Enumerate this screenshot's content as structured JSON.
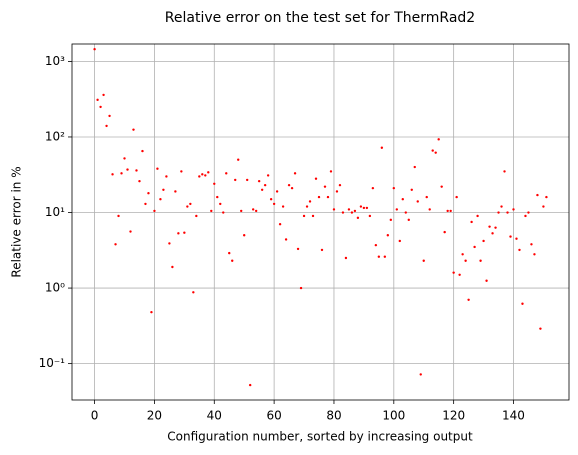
{
  "chart_data": {
    "type": "scatter",
    "title": "Relative error on the test set for ThermRad2",
    "x_label": "Configuration number, sorted by increasing output",
    "y_label": "Relative error in %",
    "color": "#ff0000",
    "log_y": true,
    "grid": true,
    "xlim": [
      -7.55,
      158.55
    ],
    "ylim": [
      0.033,
      1700
    ],
    "xticks": [
      0,
      20,
      40,
      60,
      80,
      100,
      120,
      140
    ],
    "yticks": [
      {
        "value": 0.1,
        "label": "10⁻¹"
      },
      {
        "value": 1,
        "label": "10⁰"
      },
      {
        "value": 10,
        "label": "10¹"
      },
      {
        "value": 100,
        "label": "10²"
      },
      {
        "value": 1000,
        "label": "10³"
      }
    ],
    "x": [
      0,
      1,
      2,
      3,
      4,
      5,
      6,
      7,
      8,
      9,
      10,
      11,
      12,
      13,
      14,
      15,
      16,
      17,
      18,
      19,
      20,
      21,
      22,
      23,
      24,
      25,
      26,
      27,
      28,
      29,
      30,
      31,
      32,
      33,
      34,
      35,
      36,
      37,
      38,
      39,
      40,
      41,
      42,
      43,
      44,
      45,
      46,
      47,
      48,
      49,
      50,
      51,
      52,
      53,
      54,
      55,
      56,
      57,
      58,
      59,
      60,
      61,
      62,
      63,
      64,
      65,
      66,
      67,
      68,
      69,
      70,
      71,
      72,
      73,
      74,
      75,
      76,
      77,
      78,
      79,
      80,
      81,
      82,
      83,
      84,
      85,
      86,
      87,
      88,
      89,
      90,
      91,
      92,
      93,
      94,
      95,
      96,
      97,
      98,
      99,
      100,
      101,
      102,
      103,
      104,
      105,
      106,
      107,
      108,
      109,
      110,
      111,
      112,
      113,
      114,
      115,
      116,
      117,
      118,
      119,
      120,
      121,
      122,
      123,
      124,
      125,
      126,
      127,
      128,
      129,
      130,
      131,
      132,
      133,
      134,
      135,
      136,
      137,
      138,
      139,
      140,
      141,
      142,
      143,
      144,
      145,
      146,
      147,
      148,
      149,
      150,
      151
    ],
    "values": [
      1450,
      310,
      250,
      360,
      140,
      190,
      32,
      3.8,
      9,
      33,
      52,
      37,
      5.6,
      125,
      36,
      26,
      65,
      13,
      18,
      0.48,
      10.5,
      38,
      15,
      20,
      30,
      3.9,
      1.9,
      19,
      5.3,
      35,
      5.4,
      12,
      13,
      0.88,
      9,
      30,
      32,
      31,
      34,
      10.5,
      24,
      16,
      13,
      10,
      33,
      2.9,
      2.3,
      27,
      50,
      10.5,
      5,
      27,
      0.052,
      11,
      10.5,
      26,
      20,
      23,
      31,
      15,
      13,
      19,
      7,
      12,
      4.4,
      23,
      21,
      33,
      3.3,
      1.0,
      9,
      12,
      14,
      9,
      28,
      16,
      3.2,
      22,
      16,
      35,
      11,
      19,
      23,
      10,
      2.5,
      11,
      10,
      10.5,
      8.5,
      12,
      11.5,
      11.5,
      9,
      21,
      3.7,
      2.6,
      72,
      2.6,
      5,
      8,
      21,
      11,
      4.2,
      15,
      10,
      8,
      20,
      40,
      14,
      0.072,
      2.3,
      16,
      11,
      66,
      62,
      93,
      22,
      5.5,
      10.5,
      10.5,
      1.6,
      16,
      1.5,
      2.8,
      2.3,
      0.7,
      7.5,
      3.5,
      9,
      2.3,
      4.2,
      1.25,
      6.5,
      5.3,
      6.3,
      10,
      12,
      35,
      10,
      4.8,
      11,
      4.5,
      3.2,
      0.62,
      9,
      10,
      3.8,
      2.8,
      17,
      0.29,
      12,
      16
    ]
  }
}
